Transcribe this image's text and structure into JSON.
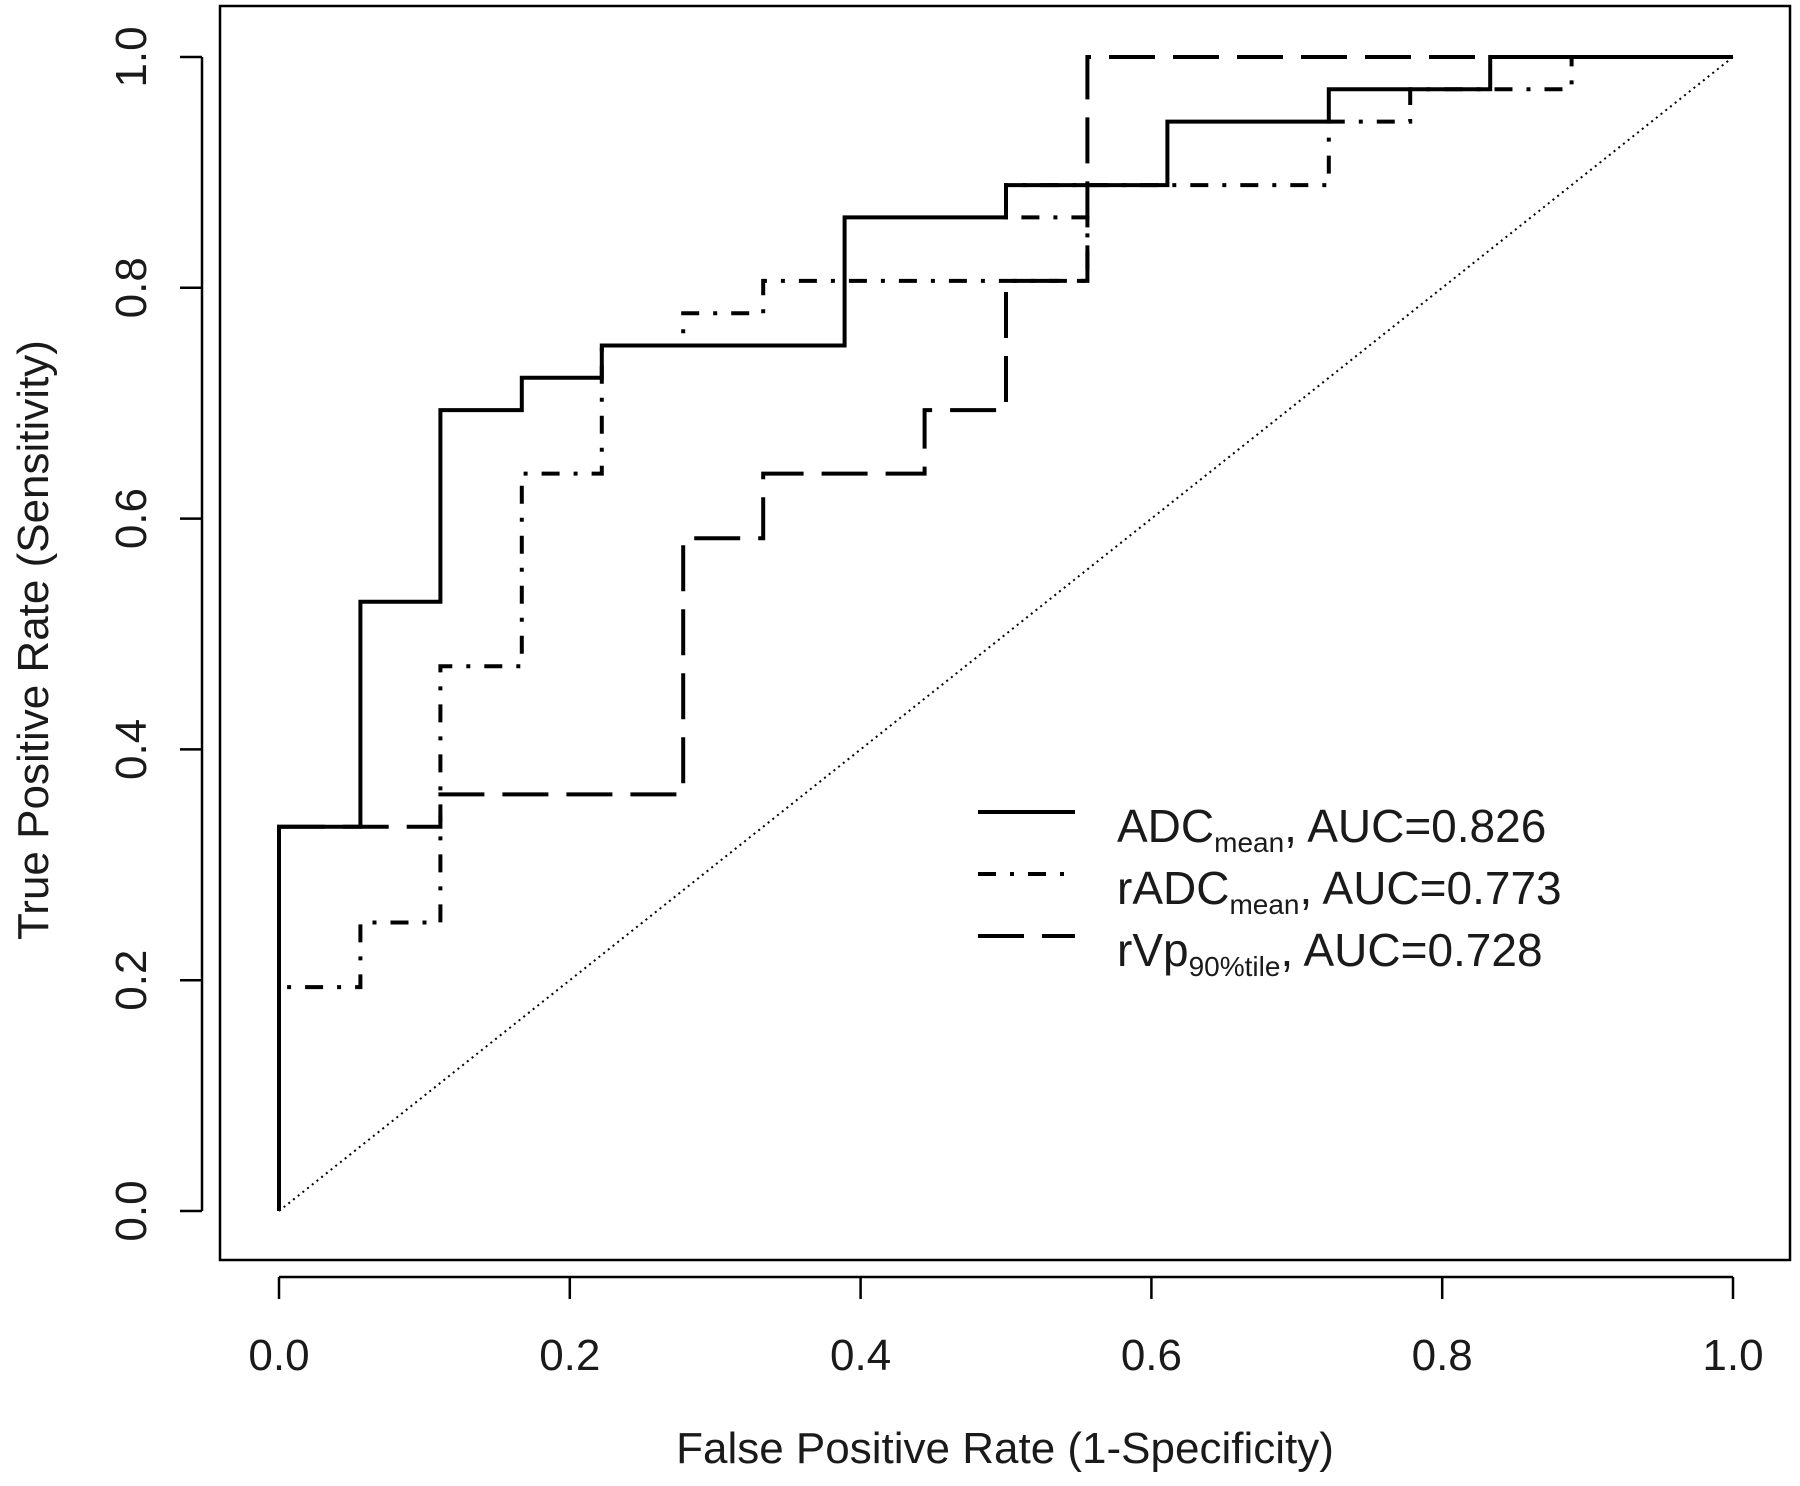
{
  "chart_data": {
    "type": "line",
    "xlabel": "False Positive Rate (1-Specificity)",
    "ylabel": "True Positive Rate (Sensitivity)",
    "xlim": [
      0,
      1
    ],
    "ylim": [
      0,
      1
    ],
    "x_ticks": [
      "0.0",
      "0.2",
      "0.4",
      "0.6",
      "0.8",
      "1.0"
    ],
    "y_ticks": [
      "0.0",
      "0.2",
      "0.4",
      "0.6",
      "0.8",
      "1.0"
    ],
    "grid": false,
    "legend_position": "bottom-right",
    "reference_line": {
      "style": "dotted",
      "points": [
        [
          0,
          0
        ],
        [
          1,
          1
        ]
      ]
    },
    "series": [
      {
        "name_main": "ADC",
        "name_sub": "mean",
        "auc_text": ", AUC=0.826",
        "style": "solid",
        "points": [
          [
            0,
            0
          ],
          [
            0,
            0.333
          ],
          [
            0.056,
            0.333
          ],
          [
            0.056,
            0.528
          ],
          [
            0.111,
            0.528
          ],
          [
            0.111,
            0.694
          ],
          [
            0.167,
            0.694
          ],
          [
            0.167,
            0.722
          ],
          [
            0.222,
            0.722
          ],
          [
            0.222,
            0.75
          ],
          [
            0.389,
            0.75
          ],
          [
            0.389,
            0.861
          ],
          [
            0.5,
            0.861
          ],
          [
            0.5,
            0.889
          ],
          [
            0.611,
            0.889
          ],
          [
            0.611,
            0.944
          ],
          [
            0.722,
            0.944
          ],
          [
            0.722,
            0.972
          ],
          [
            0.833,
            0.972
          ],
          [
            0.833,
            1.0
          ],
          [
            1,
            1
          ]
        ]
      },
      {
        "name_main": "rADC",
        "name_sub": "mean",
        "auc_text": ", AUC=0.773",
        "style": "dashdot",
        "points": [
          [
            0,
            0
          ],
          [
            0,
            0.194
          ],
          [
            0.056,
            0.194
          ],
          [
            0.056,
            0.25
          ],
          [
            0.111,
            0.25
          ],
          [
            0.111,
            0.472
          ],
          [
            0.167,
            0.472
          ],
          [
            0.167,
            0.639
          ],
          [
            0.222,
            0.639
          ],
          [
            0.222,
            0.75
          ],
          [
            0.278,
            0.75
          ],
          [
            0.278,
            0.778
          ],
          [
            0.333,
            0.778
          ],
          [
            0.333,
            0.806
          ],
          [
            0.556,
            0.806
          ],
          [
            0.556,
            0.861
          ],
          [
            0.5,
            0.861
          ],
          [
            0.5,
            0.889
          ],
          [
            0.722,
            0.889
          ],
          [
            0.722,
            0.944
          ],
          [
            0.778,
            0.944
          ],
          [
            0.778,
            0.972
          ],
          [
            0.889,
            0.972
          ],
          [
            0.889,
            1.0
          ],
          [
            1,
            1
          ]
        ]
      },
      {
        "name_main": "rVp",
        "name_sub": "90%tile",
        "auc_text": ", AUC=0.728",
        "style": "dashed",
        "points": [
          [
            0,
            0
          ],
          [
            0,
            0.333
          ],
          [
            0.111,
            0.333
          ],
          [
            0.111,
            0.361
          ],
          [
            0.278,
            0.361
          ],
          [
            0.278,
            0.583
          ],
          [
            0.333,
            0.583
          ],
          [
            0.333,
            0.639
          ],
          [
            0.444,
            0.639
          ],
          [
            0.444,
            0.694
          ],
          [
            0.5,
            0.694
          ],
          [
            0.5,
            0.806
          ],
          [
            0.556,
            0.806
          ],
          [
            0.556,
            1.0
          ],
          [
            1,
            1
          ]
        ]
      }
    ]
  }
}
